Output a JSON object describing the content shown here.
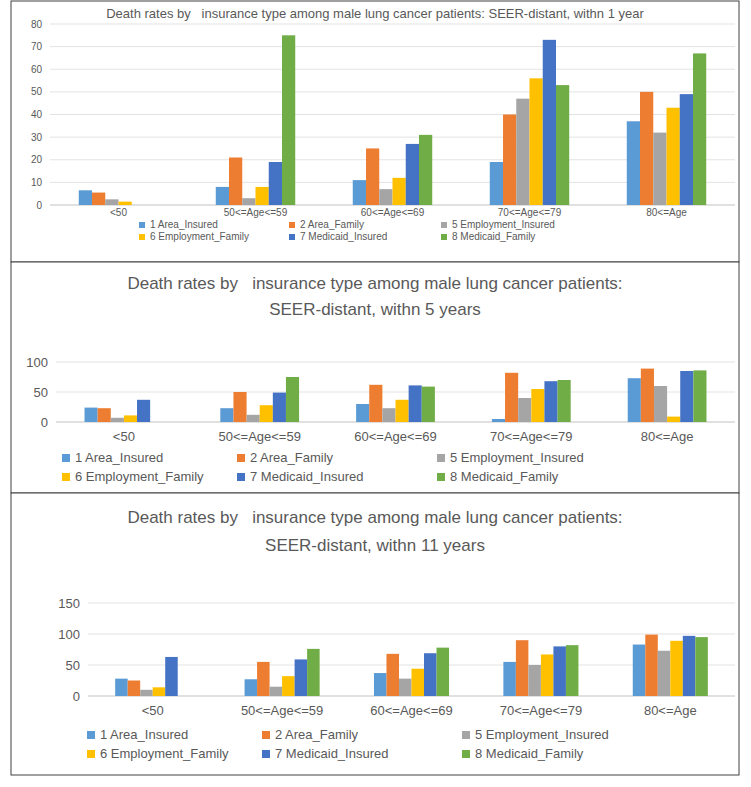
{
  "chart_data": [
    {
      "type": "bar",
      "title": "Death rates by   insurance type among male lung cancer patients: SEER-distant, withn 1 year",
      "categories": [
        "<50",
        "50<=Age<=59",
        "60<=Age<=69",
        "70<=Age<=79",
        "80<=Age"
      ],
      "series": [
        {
          "name": "1 Area_Insured",
          "color": "#5b9bd5",
          "values": [
            6.5,
            8,
            11,
            19,
            37
          ]
        },
        {
          "name": "2 Area_Family",
          "color": "#ed7d31",
          "values": [
            5.5,
            21,
            25,
            40,
            50
          ]
        },
        {
          "name": "5 Employment_Insured",
          "color": "#a5a5a5",
          "values": [
            2.5,
            3,
            7,
            47,
            32
          ]
        },
        {
          "name": "6 Employment_Family",
          "color": "#ffc000",
          "values": [
            1.5,
            8,
            12,
            56,
            43
          ]
        },
        {
          "name": "7 Medicaid_Insured",
          "color": "#4472c4",
          "values": [
            null,
            19,
            27,
            73,
            49
          ]
        },
        {
          "name": "8 Medicaid_Family",
          "color": "#70ad47",
          "values": [
            null,
            75,
            31,
            53,
            67
          ]
        }
      ],
      "ylim": [
        0,
        80
      ],
      "yticks": [
        0,
        10,
        20,
        30,
        40,
        50,
        60,
        70,
        80
      ],
      "grid": true,
      "legend": "bottom"
    },
    {
      "type": "bar",
      "title": "Death rates by   insurance type among male lung cancer patients: SEER-distant, withn 5 years",
      "categories": [
        "<50",
        "50<=Age<=59",
        "60<=Age<=69",
        "70<=Age<=79",
        "80<=Age"
      ],
      "series": [
        {
          "name": "1 Area_Insured",
          "color": "#5b9bd5",
          "values": [
            24,
            23,
            30,
            5,
            73
          ]
        },
        {
          "name": "2 Area_Family",
          "color": "#ed7d31",
          "values": [
            23,
            50,
            62,
            82,
            89
          ]
        },
        {
          "name": "5 Employment_Insured",
          "color": "#a5a5a5",
          "values": [
            7,
            12,
            23,
            40,
            60
          ]
        },
        {
          "name": "6 Employment_Family",
          "color": "#ffc000",
          "values": [
            11,
            28,
            37,
            55,
            9
          ]
        },
        {
          "name": "7 Medicaid_Insured",
          "color": "#4472c4",
          "values": [
            37,
            49,
            61,
            68,
            85
          ]
        },
        {
          "name": "8 Medicaid_Family",
          "color": "#70ad47",
          "values": [
            null,
            75,
            59,
            70,
            86
          ]
        }
      ],
      "ylim": [
        0,
        100
      ],
      "yticks": [
        0,
        50,
        100
      ],
      "grid": true,
      "legend": "bottom"
    },
    {
      "type": "bar",
      "title": "Death rates by   insurance type among male lung cancer patients: SEER-distant, withn 11 years",
      "categories": [
        "<50",
        "50<=Age<=59",
        "60<=Age<=69",
        "70<=Age<=79",
        "80<=Age"
      ],
      "series": [
        {
          "name": "1 Area_Insured",
          "color": "#5b9bd5",
          "values": [
            28,
            27,
            37,
            55,
            83
          ]
        },
        {
          "name": "2 Area_Family",
          "color": "#ed7d31",
          "values": [
            25,
            55,
            68,
            90,
            99
          ]
        },
        {
          "name": "5 Employment_Insured",
          "color": "#a5a5a5",
          "values": [
            10,
            15,
            28,
            50,
            73
          ]
        },
        {
          "name": "6 Employment_Family",
          "color": "#ffc000",
          "values": [
            14,
            32,
            44,
            67,
            89
          ]
        },
        {
          "name": "7 Medicaid_Insured",
          "color": "#4472c4",
          "values": [
            63,
            59,
            69,
            80,
            97
          ]
        },
        {
          "name": "8 Medicaid_Family",
          "color": "#70ad47",
          "values": [
            null,
            76,
            78,
            82,
            95
          ]
        }
      ],
      "ylim": [
        0,
        150
      ],
      "yticks": [
        0,
        50,
        100,
        150
      ],
      "grid": true,
      "legend": "bottom"
    }
  ]
}
